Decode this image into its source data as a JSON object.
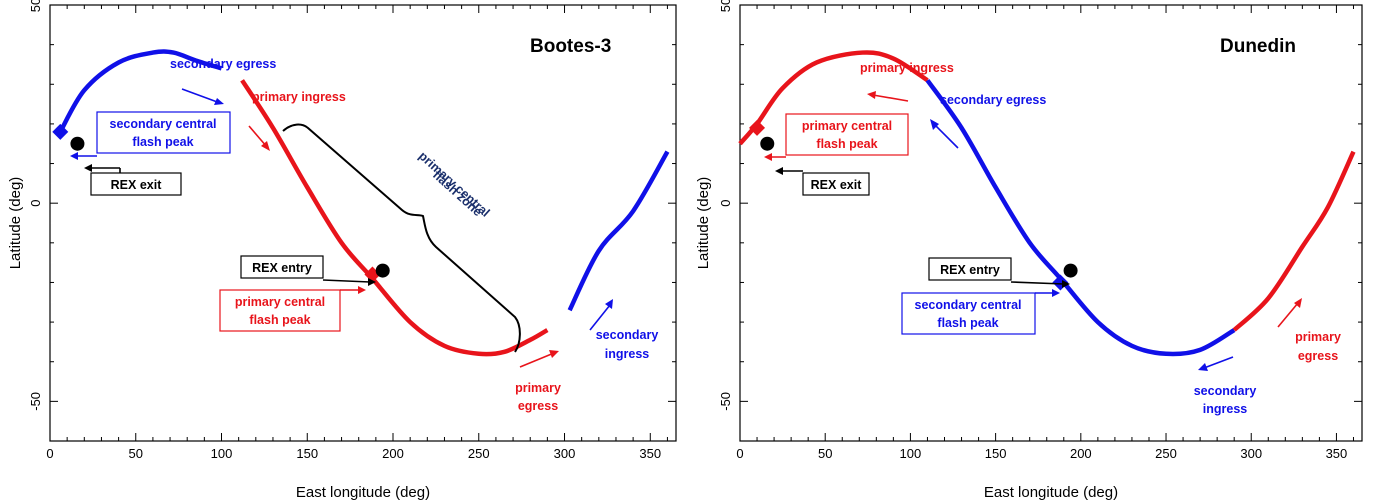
{
  "colors": {
    "primary": "#e8141b",
    "secondary": "#1010e8",
    "black": "#000000",
    "zone": "#1a2f6b"
  },
  "chart_data": [
    {
      "type": "line",
      "title": "Bootes-3",
      "xlabel": "East longitude (deg)",
      "ylabel": "Latitude (deg)",
      "xlim": [
        0,
        365
      ],
      "ylim": [
        -60,
        50
      ],
      "xticks": [
        0,
        50,
        100,
        150,
        200,
        250,
        300,
        350
      ],
      "yticks": [
        -50,
        0,
        50
      ],
      "series": [
        {
          "name": "secondary",
          "color": "#1010e8",
          "x": [
            6,
            20,
            40,
            60,
            72,
            85,
            100
          ],
          "y": [
            18,
            28.5,
            35.5,
            38,
            38,
            36,
            34
          ]
        },
        {
          "name": "primary",
          "color": "#e8141b",
          "x": [
            112,
            130,
            150,
            170,
            188,
            210,
            230,
            250,
            265,
            280,
            290
          ],
          "y": [
            31,
            19,
            4,
            -10,
            -19,
            -30,
            -36,
            -38,
            -37.5,
            -34.5,
            -32
          ]
        },
        {
          "name": "secondary",
          "color": "#1010e8",
          "x": [
            303,
            320,
            340,
            360
          ],
          "y": [
            -27,
            -12,
            -2,
            13
          ]
        }
      ],
      "markers": [
        {
          "label": "secondary central flash peak",
          "shape": "diamond",
          "color": "#1010e8",
          "x": 6,
          "y": 18
        },
        {
          "label": "REX exit",
          "shape": "circle",
          "color": "#000000",
          "x": 16,
          "y": 15
        },
        {
          "label": "primary central flash peak",
          "shape": "diamond",
          "color": "#e8141b",
          "x": 188,
          "y": -18
        },
        {
          "label": "REX entry",
          "shape": "circle",
          "color": "#000000",
          "x": 194,
          "y": -17
        }
      ],
      "annotations": {
        "secondary_egress": "secondary egress",
        "primary_ingress": "primary ingress",
        "secondary_central_flash_peak": [
          "secondary central",
          "flash peak"
        ],
        "rex_exit": "REX exit",
        "primary_central_flash_zone": [
          "primary central",
          "flash zone"
        ],
        "rex_entry": "REX entry",
        "primary_central_flash_peak": [
          "primary central",
          "flash peak"
        ],
        "primary_egress": [
          "primary",
          "egress"
        ],
        "secondary_ingress": [
          "secondary",
          "ingress"
        ]
      }
    },
    {
      "type": "line",
      "title": "Dunedin",
      "xlabel": "East longitude (deg)",
      "ylabel": "Latitude (deg)",
      "xlim": [
        0,
        365
      ],
      "ylim": [
        -60,
        50
      ],
      "xticks": [
        0,
        50,
        100,
        150,
        200,
        250,
        300,
        350
      ],
      "yticks": [
        -50,
        0,
        50
      ],
      "series": [
        {
          "name": "primary",
          "color": "#e8141b",
          "x": [
            0,
            10,
            25,
            45,
            72,
            90,
            110
          ],
          "y": [
            15,
            20,
            29,
            35.5,
            38,
            36.5,
            31
          ]
        },
        {
          "name": "secondary",
          "color": "#1010e8",
          "x": [
            110,
            130,
            150,
            170,
            188,
            210,
            230,
            250,
            270,
            290
          ],
          "y": [
            31,
            19,
            4,
            -10,
            -19,
            -30,
            -36,
            -38,
            -37,
            -32
          ]
        },
        {
          "name": "primary",
          "color": "#e8141b",
          "x": [
            290,
            310,
            330,
            345,
            360
          ],
          "y": [
            -32,
            -24,
            -11,
            -1,
            13
          ]
        }
      ],
      "markers": [
        {
          "label": "primary central flash peak",
          "shape": "diamond",
          "color": "#e8141b",
          "x": 10,
          "y": 19
        },
        {
          "label": "REX exit",
          "shape": "circle",
          "color": "#000000",
          "x": 16,
          "y": 15
        },
        {
          "label": "secondary central flash peak",
          "shape": "diamond",
          "color": "#1010e8",
          "x": 188,
          "y": -20
        },
        {
          "label": "REX entry",
          "shape": "circle",
          "color": "#000000",
          "x": 194,
          "y": -17
        }
      ],
      "annotations": {
        "primary_ingress": "primary ingress",
        "secondary_egress": "secondary egress",
        "primary_central_flash_peak": [
          "primary central",
          "flash peak"
        ],
        "rex_exit": "REX exit",
        "rex_entry": "REX entry",
        "secondary_central_flash_peak": [
          "secondary central",
          "flash peak"
        ],
        "primary_egress": [
          "primary",
          "egress"
        ],
        "secondary_ingress": [
          "secondary",
          "ingress"
        ]
      }
    }
  ]
}
